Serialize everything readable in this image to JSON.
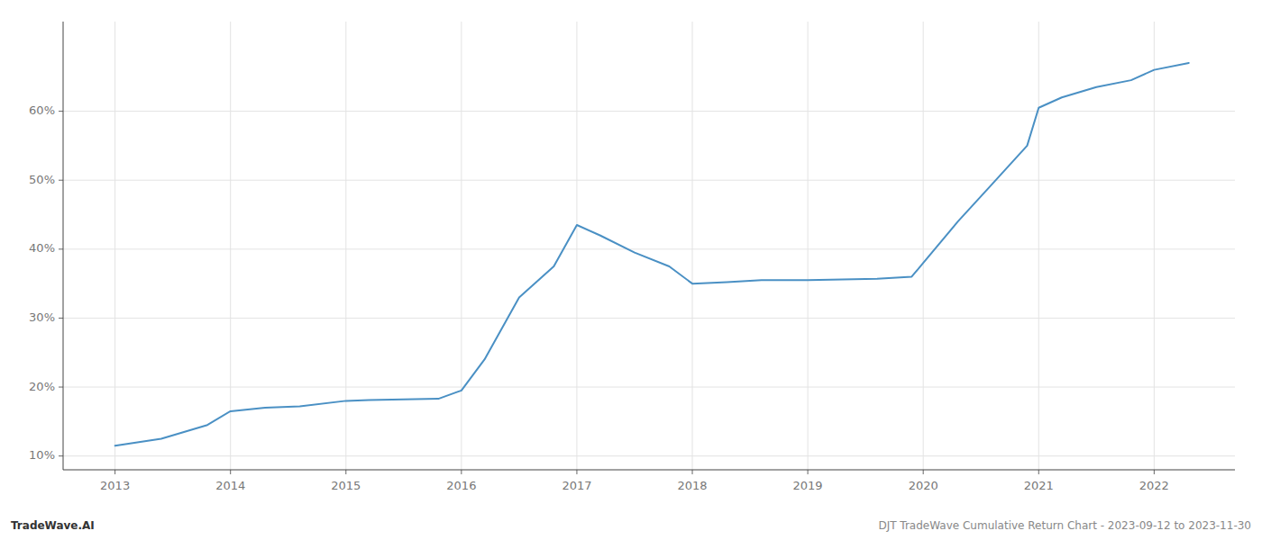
{
  "chart_data": {
    "type": "line",
    "x": [
      2013.0,
      2013.4,
      2013.8,
      2014.0,
      2014.3,
      2014.6,
      2015.0,
      2015.2,
      2015.5,
      2015.8,
      2016.0,
      2016.2,
      2016.5,
      2016.8,
      2017.0,
      2017.2,
      2017.5,
      2017.8,
      2018.0,
      2018.3,
      2018.6,
      2018.9,
      2019.0,
      2019.3,
      2019.6,
      2019.9,
      2020.0,
      2020.3,
      2020.6,
      2020.9,
      2021.0,
      2021.2,
      2021.5,
      2021.8,
      2022.0,
      2022.3
    ],
    "values": [
      11.5,
      12.5,
      14.5,
      16.5,
      17.0,
      17.2,
      18.0,
      18.1,
      18.2,
      18.3,
      19.5,
      24.0,
      33.0,
      37.5,
      43.5,
      42.0,
      39.5,
      37.5,
      35.0,
      35.2,
      35.5,
      35.5,
      35.5,
      35.6,
      35.7,
      36.0,
      38.0,
      44.0,
      49.5,
      55.0,
      60.5,
      62.0,
      63.5,
      64.5,
      66.0,
      67.0
    ],
    "color": "#4a90c4",
    "xlim": [
      2012.55,
      2022.7
    ],
    "ylim": [
      8.0,
      73.0
    ],
    "xticks": [
      2013,
      2014,
      2015,
      2016,
      2017,
      2018,
      2019,
      2020,
      2021,
      2022
    ],
    "yticks": [
      {
        "value": 10,
        "label": "10%"
      },
      {
        "value": 20,
        "label": "20%"
      },
      {
        "value": 30,
        "label": "30%"
      },
      {
        "value": 40,
        "label": "40%"
      },
      {
        "value": 50,
        "label": "50%"
      },
      {
        "value": 60,
        "label": "60%"
      }
    ],
    "grid": true,
    "annotations": [
      "TradeWave.AI",
      "DJT TradeWave Cumulative Return Chart - 2023-09-12 to 2023-11-30"
    ]
  }
}
